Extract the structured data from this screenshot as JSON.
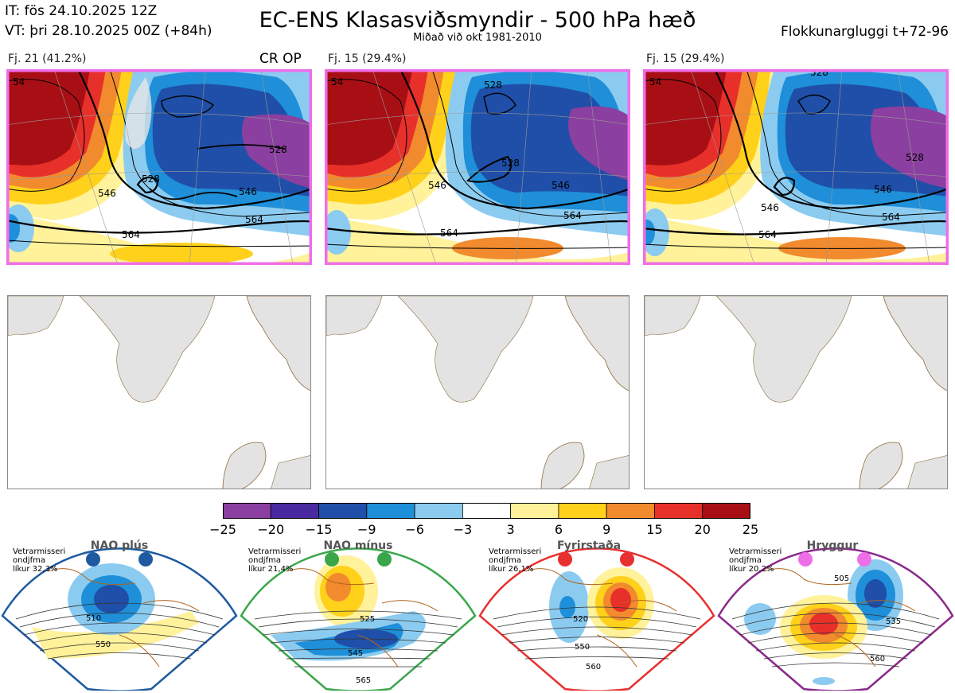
{
  "header": {
    "it": "IT: fös 24.10.2025 12Z",
    "vt": "VT: þri 28.10.2025 00Z  (+84h)",
    "title": "EC-ENS Klasasviðsmyndir - 500 hPa hæð",
    "subtitle": "Miðað við okt 1981-2010",
    "window": "Flokkunargluggi t+72-96"
  },
  "clusters": [
    {
      "label": "Fj. 21 (41.2%)",
      "tag": "CR OP",
      "contours": [
        "54",
        "546",
        "528",
        "528",
        "546",
        "564",
        "564"
      ]
    },
    {
      "label": "Fj. 15 (29.4%)",
      "tag": "",
      "contours": [
        "54",
        "528",
        "528",
        "546",
        "546",
        "564",
        "564"
      ]
    },
    {
      "label": "Fj. 15 (29.4%)",
      "tag": "",
      "contours": [
        "54",
        "528",
        "528",
        "546",
        "546",
        "564",
        "564"
      ]
    }
  ],
  "colorbar": {
    "labels": [
      "−25",
      "−20",
      "−15",
      "−9",
      "−6",
      "−3",
      "3",
      "6",
      "9",
      "15",
      "20",
      "25"
    ],
    "colors": [
      "#8b3fa0",
      "#4a2aa0",
      "#1f4fa8",
      "#1e8fd8",
      "#8ccbf0",
      "#ffffff",
      "#fff29a",
      "#ffd11a",
      "#f28a2e",
      "#e8302a",
      "#a80f14"
    ]
  },
  "regimes": [
    {
      "name": "NAO plús",
      "lines": [
        "Vetrarmisseri",
        "ondjfma",
        "líkur 32,3%"
      ],
      "border": "#1f5aa0",
      "dot": "#1f5aa0",
      "contours": [
        "510",
        "550"
      ]
    },
    {
      "name": "NAO mínus",
      "lines": [
        "Vetrarmisseri",
        "ondjfma",
        "líkur 21,4%"
      ],
      "border": "#3aa64a",
      "dot": "#3aa64a",
      "contours": [
        "525",
        "545",
        "565"
      ]
    },
    {
      "name": "Fyrirstaða",
      "lines": [
        "Vetrarmisseri",
        "ondjfma",
        "líkur 26,1%"
      ],
      "border": "#e83030",
      "dot": "#e83030",
      "contours": [
        "520",
        "550",
        "560"
      ]
    },
    {
      "name": "Hryggur",
      "lines": [
        "Vetrarmisseri",
        "ondjfma",
        "líkur 20,2%"
      ],
      "border": "#8a2a8a",
      "dot": "#ee6ee8",
      "contours": [
        "505",
        "535",
        "560"
      ]
    }
  ]
}
